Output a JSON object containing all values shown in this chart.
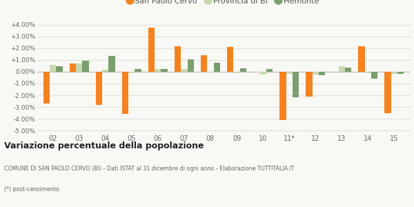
{
  "years": [
    "02",
    "03",
    "04",
    "05",
    "06",
    "07",
    "08",
    "09",
    "10",
    "11*",
    "12",
    "13",
    "14",
    "15"
  ],
  "san_paolo": [
    -2.7,
    0.7,
    -2.8,
    -3.6,
    3.75,
    2.15,
    1.4,
    2.1,
    0.0,
    -4.1,
    -2.1,
    0.0,
    2.15,
    -3.55
  ],
  "provincia": [
    0.55,
    0.7,
    0.15,
    -0.15,
    0.2,
    0.25,
    -0.05,
    -0.15,
    -0.25,
    -0.2,
    -0.25,
    0.45,
    -0.15,
    -0.2
  ],
  "piemonte": [
    0.45,
    0.95,
    1.35,
    0.25,
    0.2,
    1.05,
    0.75,
    0.3,
    0.25,
    -2.15,
    -0.3,
    0.35,
    -0.6,
    -0.2
  ],
  "color_san_paolo": "#f5821f",
  "color_provincia": "#c8d9b0",
  "color_piemonte": "#7a9e6e",
  "title": "Variazione percentuale della popolazione",
  "subtitle": "COMUNE DI SAN PAOLO CERVO (BI) - Dati ISTAT al 31 dicembre di ogni anno - Elaborazione TUTTITALIA.IT",
  "footnote": "(*) post-censimento",
  "legend_labels": [
    "San Paolo Cervo",
    "Provincia di BI",
    "Piemonte"
  ],
  "ylim": [
    -5.25,
    4.5
  ],
  "yticks": [
    -5.0,
    -4.0,
    -3.0,
    -2.0,
    -1.0,
    0.0,
    1.0,
    2.0,
    3.0,
    4.0
  ],
  "background_color": "#f8f8f4",
  "grid_color": "#e0e0e0"
}
